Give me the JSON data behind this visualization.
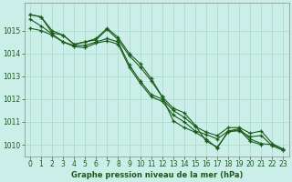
{
  "title": "Graphe pression niveau de la mer (hPa)",
  "background_color": "#cceee8",
  "grid_color": "#aaddcc",
  "line_color": "#1a5c1a",
  "marker_color": "#1a5c1a",
  "ylim": [
    1009.5,
    1016.2
  ],
  "yticks": [
    1010,
    1011,
    1012,
    1013,
    1014,
    1015
  ],
  "xlim": [
    -0.5,
    23.5
  ],
  "xticks": [
    0,
    1,
    2,
    3,
    4,
    5,
    6,
    7,
    8,
    9,
    10,
    11,
    12,
    13,
    14,
    15,
    16,
    17,
    18,
    19,
    20,
    21,
    22,
    23
  ],
  "series": [
    [
      1015.7,
      1015.6,
      1014.9,
      1014.8,
      1014.4,
      1014.5,
      1014.6,
      1015.05,
      1014.6,
      1013.9,
      1013.4,
      1012.8,
      1012.1,
      1011.6,
      1011.4,
      1010.85,
      1010.15,
      1009.9,
      1010.55,
      1010.65,
      1010.15,
      1010.0,
      null,
      null
    ],
    [
      1015.7,
      1015.6,
      1015.0,
      1014.8,
      1014.4,
      1014.5,
      1014.65,
      1015.1,
      1014.7,
      1014.0,
      1013.55,
      1012.9,
      1012.1,
      1011.05,
      1010.75,
      1010.55,
      1010.25,
      1009.85,
      1010.6,
      1010.7,
      1010.25,
      1010.05,
      1010.0,
      1009.8
    ],
    [
      1015.5,
      1015.2,
      1014.85,
      1014.5,
      1014.35,
      1014.35,
      1014.5,
      1014.65,
      1014.5,
      1013.5,
      1012.8,
      1012.2,
      1012.0,
      1011.5,
      1011.2,
      1010.8,
      1010.55,
      1010.4,
      1010.75,
      1010.75,
      1010.5,
      1010.6,
      1010.05,
      1009.8
    ],
    [
      1015.1,
      1015.0,
      1014.8,
      1014.5,
      1014.3,
      1014.25,
      1014.45,
      1014.55,
      1014.4,
      1013.4,
      1012.7,
      1012.1,
      1011.9,
      1011.3,
      1011.0,
      1010.6,
      1010.45,
      1010.25,
      1010.6,
      1010.6,
      1010.35,
      1010.4,
      1009.95,
      1009.75
    ]
  ],
  "figsize": [
    3.2,
    2.0
  ],
  "dpi": 100,
  "tick_labelsize": 5.5,
  "xlabel_fontsize": 6.0
}
